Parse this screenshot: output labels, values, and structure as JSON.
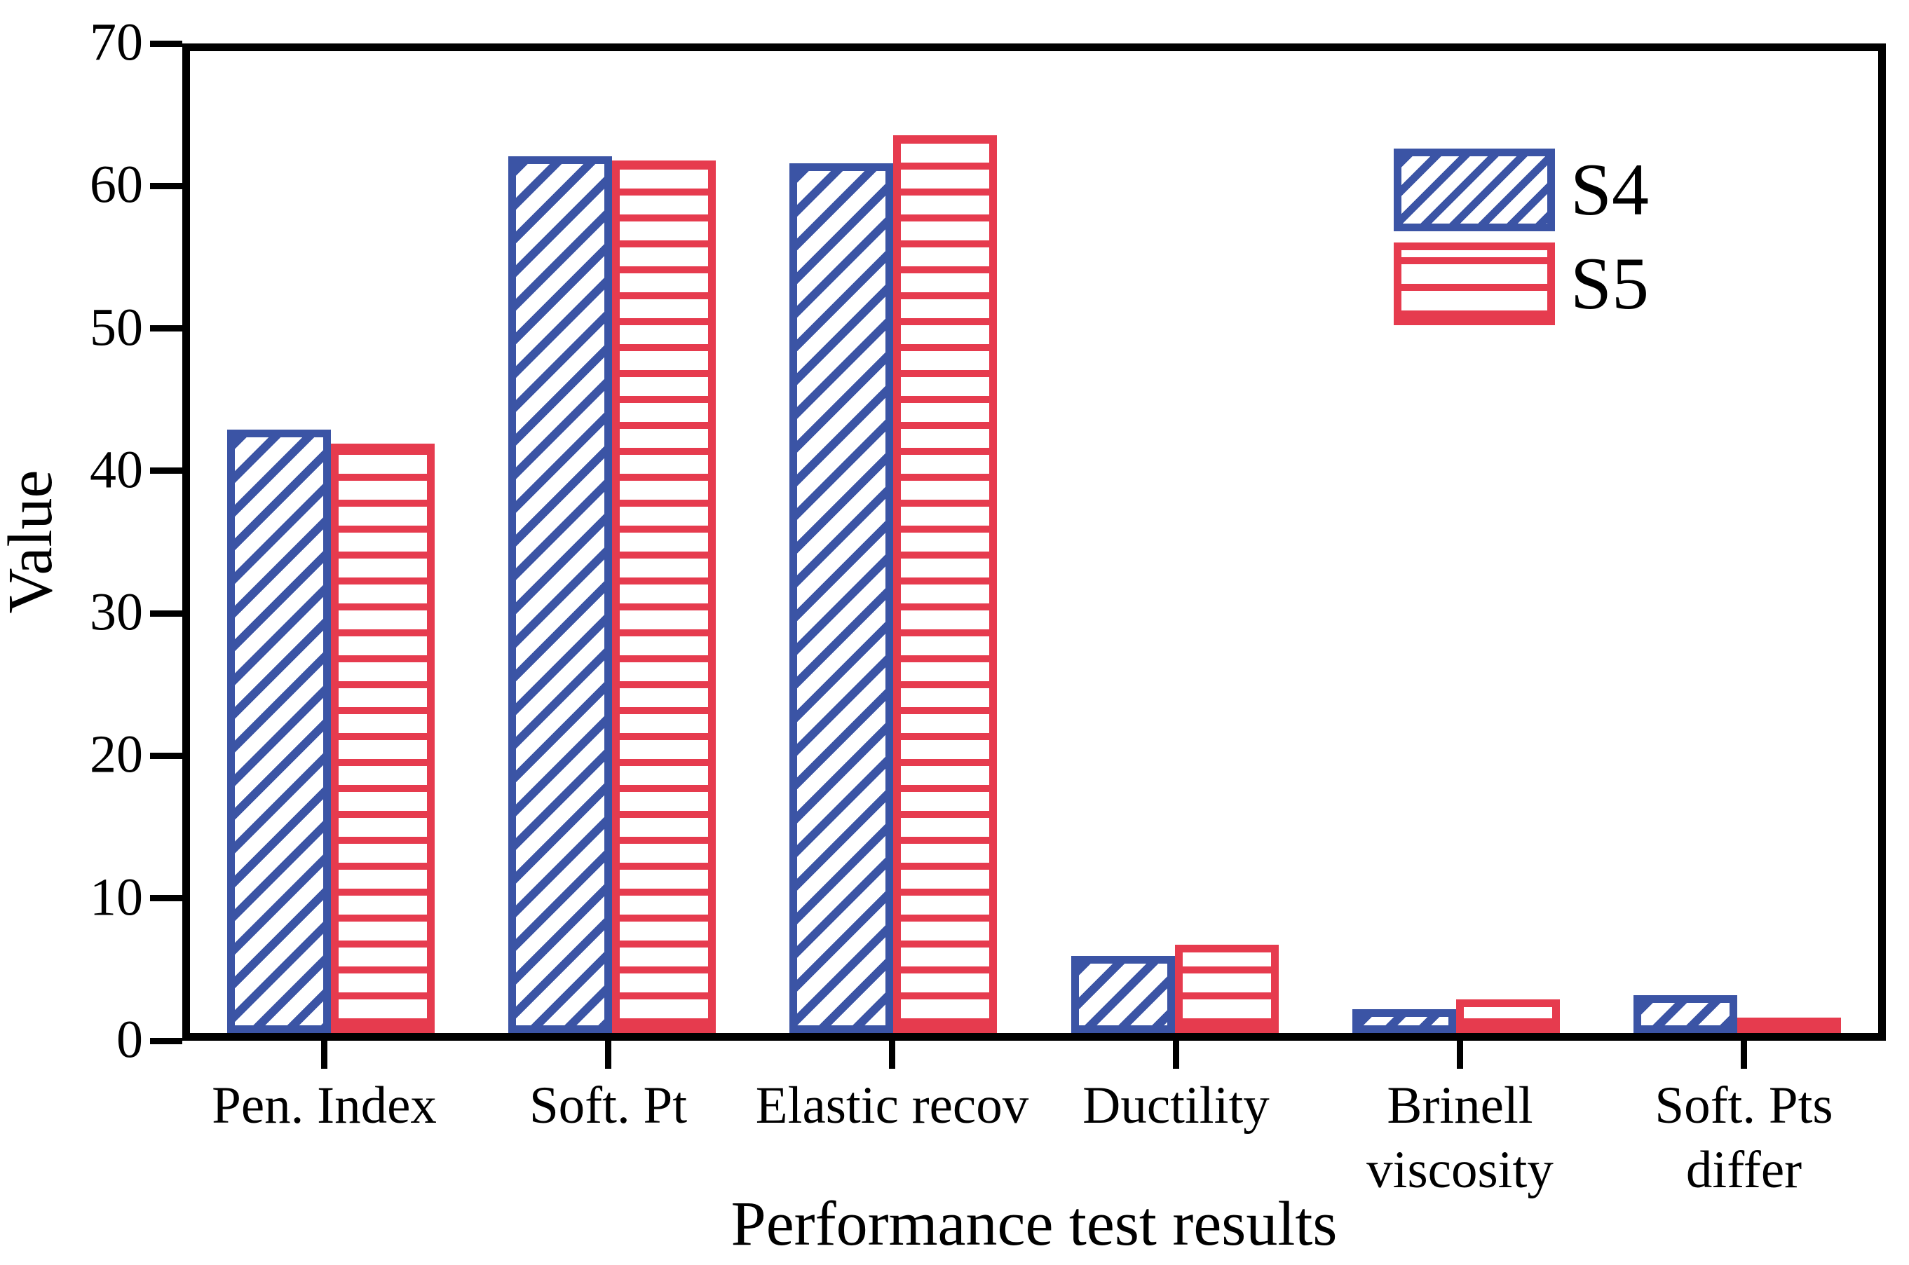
{
  "figure": {
    "background": "#ffffff",
    "frame_color": "#000000"
  },
  "chart_data": {
    "type": "bar",
    "title": "",
    "xlabel": "Performance test results",
    "ylabel": "Value",
    "categories": [
      "Pen. Index",
      "Soft. Pt",
      "Elastic recov",
      "Ductility",
      "Brinell\nviscosity",
      "Soft. Pts\ndiffer"
    ],
    "series": [
      {
        "name": "S4",
        "color": "#3B54A5",
        "hatch": "diagonal-forward",
        "values": [
          43.0,
          62.5,
          62.0,
          5.5,
          1.7,
          2.7
        ]
      },
      {
        "name": "S5",
        "color": "#E63B4E",
        "hatch": "horizontal",
        "values": [
          42.0,
          62.2,
          64.0,
          6.3,
          2.4,
          0.8
        ]
      }
    ],
    "ylim": [
      0,
      70
    ],
    "yticks": [
      0,
      10,
      20,
      30,
      40,
      50,
      60,
      70
    ],
    "grid": false,
    "legend_position": "upper-right-inside",
    "legend_entries": [
      "S4",
      "S5"
    ]
  }
}
